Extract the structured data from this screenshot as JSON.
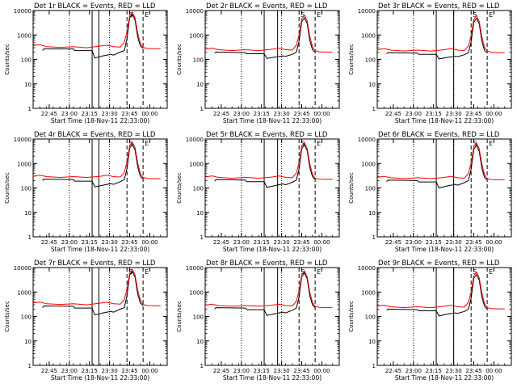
{
  "colors": {
    "events": "#000000",
    "lld": "#ff0000",
    "axes": "#000000"
  },
  "chart_data": [
    {
      "type": "line",
      "title": "Det 1r BLACK = Events, RED = LLD",
      "ylabel": "Counts/sec",
      "xlabel": "Start Time (18-Nov-11 22:33:00)",
      "x_ticks": [
        "22:45",
        "23:00",
        "23:15",
        "23:30",
        "23:45",
        "00:00"
      ],
      "y_ticks": [
        "1",
        "10",
        "100",
        "1000",
        "10000"
      ],
      "yscale": "log",
      "ylim": [
        1,
        10000
      ],
      "markers": [
        "S",
        "E"
      ],
      "series": [
        {
          "name": "Events",
          "color": "#000000",
          "x": [
            7,
            8,
            30,
            31,
            44,
            46,
            52,
            58,
            60,
            65,
            68,
            70,
            72,
            74,
            76,
            78,
            80,
            82
          ],
          "y": [
            230,
            270,
            270,
            230,
            230,
            115,
            140,
            160,
            150,
            200,
            230,
            700,
            5000,
            7000,
            4000,
            800,
            350,
            280
          ]
        },
        {
          "name": "LLD",
          "color": "#ff0000",
          "x": [
            0,
            5,
            10,
            20,
            30,
            40,
            50,
            55,
            60,
            65,
            68,
            70,
            72,
            74,
            76,
            78,
            80,
            82,
            85,
            90,
            95
          ],
          "y": [
            370,
            400,
            330,
            310,
            330,
            300,
            350,
            380,
            330,
            320,
            500,
            1300,
            6000,
            8500,
            5000,
            1200,
            450,
            310,
            280,
            275,
            275
          ]
        }
      ]
    },
    {
      "type": "line",
      "title": "Det 2r BLACK = Events, RED = LLD",
      "ylabel": "Counts/sec",
      "xlabel": "Start Time (18-Nov-11 22:33:00)",
      "x_ticks": [
        "22:45",
        "23:00",
        "23:15",
        "23:30",
        "23:45",
        "00:00"
      ],
      "y_ticks": [
        "1",
        "10",
        "100",
        "1000",
        "10000"
      ],
      "yscale": "log",
      "ylim": [
        1,
        10000
      ],
      "markers": [
        "S",
        "E"
      ],
      "series": [
        {
          "name": "Events",
          "color": "#000000",
          "x": [
            7,
            8,
            30,
            31,
            44,
            46,
            52,
            58,
            60,
            65,
            68,
            70,
            72,
            74,
            76,
            78,
            80,
            82
          ],
          "y": [
            180,
            200,
            190,
            170,
            170,
            110,
            125,
            140,
            135,
            160,
            200,
            550,
            3500,
            5000,
            3000,
            600,
            250,
            200
          ]
        },
        {
          "name": "LLD",
          "color": "#ff0000",
          "x": [
            0,
            5,
            10,
            20,
            30,
            40,
            50,
            55,
            60,
            65,
            68,
            70,
            72,
            74,
            76,
            78,
            80,
            82,
            85,
            90,
            95
          ],
          "y": [
            260,
            290,
            250,
            230,
            250,
            230,
            260,
            290,
            250,
            240,
            380,
            1000,
            4500,
            6500,
            3800,
            900,
            330,
            230,
            205,
            200,
            200
          ]
        }
      ]
    },
    {
      "type": "line",
      "title": "Det 3r BLACK = Events, RED = LLD",
      "ylabel": "Counts/sec",
      "xlabel": "Start Time (18-Nov-11 22:33:00)",
      "x_ticks": [
        "22:45",
        "23:00",
        "23:15",
        "23:30",
        "23:45",
        "00:00"
      ],
      "y_ticks": [
        "1",
        "10",
        "100",
        "1000",
        "10000"
      ],
      "yscale": "log",
      "ylim": [
        1,
        10000
      ],
      "markers": [
        "S",
        "E"
      ],
      "series": [
        {
          "name": "Events",
          "color": "#000000",
          "x": [
            7,
            8,
            30,
            31,
            44,
            46,
            52,
            58,
            60,
            65,
            68,
            70,
            72,
            74,
            76,
            78,
            80,
            82
          ],
          "y": [
            170,
            190,
            180,
            160,
            160,
            105,
            120,
            135,
            130,
            155,
            190,
            520,
            3300,
            4800,
            2900,
            560,
            230,
            190
          ]
        },
        {
          "name": "LLD",
          "color": "#ff0000",
          "x": [
            0,
            5,
            10,
            20,
            30,
            40,
            50,
            55,
            60,
            65,
            68,
            70,
            72,
            74,
            76,
            78,
            80,
            82,
            85,
            90,
            95
          ],
          "y": [
            250,
            280,
            240,
            220,
            240,
            220,
            250,
            280,
            240,
            230,
            360,
            950,
            4300,
            6200,
            3600,
            850,
            310,
            220,
            195,
            190,
            190
          ]
        }
      ]
    },
    {
      "type": "line",
      "title": "Det 4r BLACK = Events, RED = LLD",
      "ylabel": "Counts/sec",
      "xlabel": "Start Time (18-Nov-11 22:33:00)",
      "x_ticks": [
        "22:45",
        "23:00",
        "23:15",
        "23:30",
        "23:45",
        "00:00"
      ],
      "y_ticks": [
        "1",
        "10",
        "100",
        "1000",
        "10000"
      ],
      "yscale": "log",
      "ylim": [
        1,
        10000
      ],
      "markers": [
        "S",
        "E"
      ],
      "series": [
        {
          "name": "Events",
          "color": "#000000",
          "x": [
            7,
            8,
            30,
            31,
            44,
            46,
            52,
            58,
            60,
            65,
            68,
            70,
            72,
            74,
            76,
            78,
            80,
            82
          ],
          "y": [
            200,
            230,
            220,
            190,
            190,
            110,
            130,
            150,
            140,
            180,
            220,
            620,
            4200,
            6000,
            3500,
            700,
            300,
            230
          ]
        },
        {
          "name": "LLD",
          "color": "#ff0000",
          "x": [
            0,
            5,
            10,
            20,
            30,
            40,
            50,
            55,
            60,
            65,
            68,
            70,
            72,
            74,
            76,
            78,
            80,
            82,
            85,
            90,
            95
          ],
          "y": [
            300,
            330,
            290,
            270,
            290,
            270,
            300,
            330,
            290,
            280,
            430,
            1150,
            5200,
            7500,
            4400,
            1050,
            380,
            270,
            245,
            240,
            240
          ]
        }
      ]
    },
    {
      "type": "line",
      "title": "Det 5r BLACK = Events, RED = LLD",
      "ylabel": "Counts/sec",
      "xlabel": "Start Time (18-Nov-11 22:33:00)",
      "x_ticks": [
        "22:45",
        "23:00",
        "23:15",
        "23:30",
        "23:45",
        "00:00"
      ],
      "y_ticks": [
        "1",
        "10",
        "100",
        "1000",
        "10000"
      ],
      "yscale": "log",
      "ylim": [
        1,
        10000
      ],
      "markers": [
        "S",
        "E"
      ],
      "series": [
        {
          "name": "Events",
          "color": "#000000",
          "x": [
            7,
            8,
            30,
            31,
            44,
            46,
            52,
            58,
            60,
            65,
            68,
            70,
            72,
            74,
            76,
            78,
            80,
            82
          ],
          "y": [
            190,
            220,
            210,
            180,
            180,
            105,
            125,
            145,
            135,
            170,
            210,
            600,
            4000,
            5800,
            3400,
            680,
            290,
            220
          ]
        },
        {
          "name": "LLD",
          "color": "#ff0000",
          "x": [
            0,
            5,
            10,
            20,
            30,
            40,
            50,
            55,
            60,
            65,
            68,
            70,
            72,
            74,
            76,
            78,
            80,
            82,
            85,
            90,
            95
          ],
          "y": [
            280,
            310,
            270,
            250,
            270,
            250,
            280,
            310,
            270,
            260,
            410,
            1100,
            5000,
            7200,
            4200,
            1000,
            360,
            250,
            230,
            225,
            225
          ]
        }
      ]
    },
    {
      "type": "line",
      "title": "Det 6r BLACK = Events, RED = LLD",
      "ylabel": "Counts/sec",
      "xlabel": "Start Time (18-Nov-11 22:33:00)",
      "x_ticks": [
        "22:45",
        "23:00",
        "23:15",
        "23:30",
        "23:45",
        "00:00"
      ],
      "y_ticks": [
        "1",
        "10",
        "100",
        "1000",
        "10000"
      ],
      "yscale": "log",
      "ylim": [
        1,
        10000
      ],
      "markers": [
        "S",
        "E"
      ],
      "series": [
        {
          "name": "Events",
          "color": "#000000",
          "x": [
            7,
            8,
            30,
            31,
            44,
            46,
            52,
            58,
            60,
            65,
            68,
            70,
            72,
            74,
            76,
            78,
            80,
            82
          ],
          "y": [
            180,
            210,
            200,
            175,
            175,
            100,
            120,
            140,
            130,
            165,
            200,
            580,
            3800,
            5500,
            3200,
            640,
            270,
            210
          ]
        },
        {
          "name": "LLD",
          "color": "#ff0000",
          "x": [
            0,
            5,
            10,
            20,
            30,
            40,
            50,
            55,
            60,
            65,
            68,
            70,
            72,
            74,
            76,
            78,
            80,
            82,
            85,
            90,
            95
          ],
          "y": [
            270,
            300,
            260,
            240,
            260,
            240,
            270,
            300,
            260,
            250,
            400,
            1050,
            4800,
            7000,
            4000,
            950,
            350,
            240,
            220,
            215,
            215
          ]
        }
      ]
    },
    {
      "type": "line",
      "title": "Det 7r BLACK = Events, RED = LLD",
      "ylabel": "Counts/sec",
      "xlabel": "Start Time (18-Nov-11 22:33:00)",
      "x_ticks": [
        "22:45",
        "23:00",
        "23:15",
        "23:30",
        "23:45",
        "00:00"
      ],
      "y_ticks": [
        "1",
        "10",
        "100",
        "1000",
        "10000"
      ],
      "yscale": "log",
      "ylim": [
        1,
        10000
      ],
      "markers": [
        "S",
        "E"
      ],
      "series": [
        {
          "name": "Events",
          "color": "#000000",
          "x": [
            7,
            8,
            30,
            31,
            44,
            46,
            52,
            58,
            60,
            65,
            68,
            70,
            72,
            74,
            76,
            78,
            80,
            82
          ],
          "y": [
            230,
            270,
            260,
            220,
            220,
            115,
            140,
            160,
            150,
            200,
            230,
            700,
            5000,
            7000,
            4000,
            800,
            350,
            280
          ]
        },
        {
          "name": "LLD",
          "color": "#ff0000",
          "x": [
            0,
            5,
            10,
            20,
            30,
            40,
            50,
            55,
            60,
            65,
            68,
            70,
            72,
            74,
            76,
            78,
            80,
            82,
            85,
            90,
            95
          ],
          "y": [
            360,
            390,
            330,
            310,
            330,
            300,
            350,
            380,
            330,
            320,
            500,
            1300,
            6000,
            8500,
            5000,
            1200,
            450,
            310,
            280,
            275,
            275
          ]
        }
      ]
    },
    {
      "type": "line",
      "title": "Det 8r BLACK = Events, RED = LLD",
      "ylabel": "Counts/sec",
      "xlabel": "Start Time (18-Nov-11 22:33:00)",
      "x_ticks": [
        "22:45",
        "23:00",
        "23:15",
        "23:30",
        "23:45",
        "00:00"
      ],
      "y_ticks": [
        "1",
        "10",
        "100",
        "1000",
        "10000"
      ],
      "yscale": "log",
      "ylim": [
        1,
        10000
      ],
      "markers": [
        "S",
        "E"
      ],
      "series": [
        {
          "name": "Events",
          "color": "#000000",
          "x": [
            7,
            8,
            30,
            31,
            44,
            46,
            52,
            58,
            60,
            65,
            68,
            70,
            72,
            74,
            76,
            78,
            80,
            82
          ],
          "y": [
            200,
            230,
            220,
            190,
            190,
            110,
            130,
            150,
            140,
            180,
            220,
            620,
            4200,
            6000,
            3500,
            700,
            300,
            230
          ]
        },
        {
          "name": "LLD",
          "color": "#ff0000",
          "x": [
            0,
            5,
            10,
            20,
            30,
            40,
            50,
            55,
            60,
            65,
            68,
            70,
            72,
            74,
            76,
            78,
            80,
            82,
            85,
            90,
            95
          ],
          "y": [
            290,
            320,
            280,
            260,
            280,
            260,
            290,
            320,
            280,
            270,
            420,
            1100,
            5100,
            7300,
            4300,
            1000,
            370,
            260,
            235,
            230,
            230
          ]
        }
      ]
    },
    {
      "type": "line",
      "title": "Det 9r BLACK = Events, RED = LLD",
      "ylabel": "Counts/sec",
      "xlabel": "Start Time (18-Nov-11 22:33:00)",
      "x_ticks": [
        "22:45",
        "23:00",
        "23:15",
        "23:30",
        "23:45",
        "00:00"
      ],
      "y_ticks": [
        "1",
        "10",
        "100",
        "1000",
        "10000"
      ],
      "yscale": "log",
      "ylim": [
        1,
        10000
      ],
      "markers": [
        "S",
        "E"
      ],
      "series": [
        {
          "name": "Events",
          "color": "#000000",
          "x": [
            7,
            8,
            30,
            31,
            44,
            46,
            52,
            58,
            60,
            65,
            68,
            70,
            72,
            74,
            76,
            78,
            80,
            82
          ],
          "y": [
            180,
            200,
            190,
            170,
            170,
            105,
            125,
            140,
            135,
            160,
            200,
            560,
            3600,
            5200,
            3100,
            620,
            260,
            200
          ]
        },
        {
          "name": "LLD",
          "color": "#ff0000",
          "x": [
            0,
            5,
            10,
            20,
            30,
            40,
            50,
            55,
            60,
            65,
            68,
            70,
            72,
            74,
            76,
            78,
            80,
            82,
            85,
            90,
            95
          ],
          "y": [
            260,
            290,
            250,
            230,
            250,
            230,
            260,
            290,
            250,
            240,
            380,
            1000,
            4600,
            6600,
            3900,
            920,
            340,
            230,
            210,
            205,
            205
          ]
        }
      ]
    }
  ]
}
